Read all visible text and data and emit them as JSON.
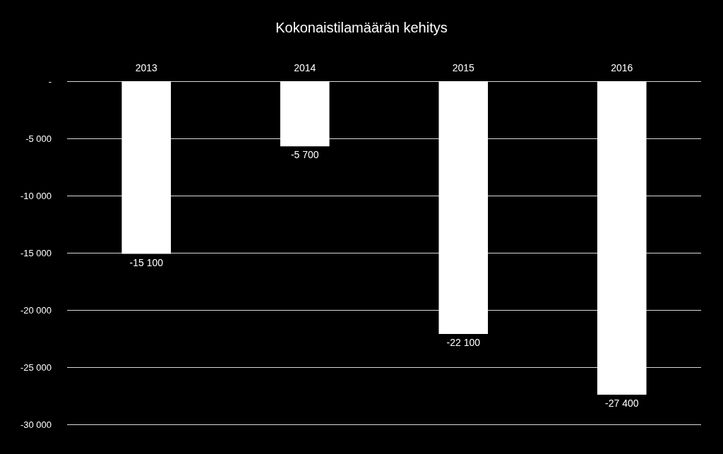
{
  "chart_data": {
    "type": "bar",
    "title": "Kokonaistilamäärän kehitys",
    "categories": [
      "2013",
      "2014",
      "2015",
      "2016"
    ],
    "values": [
      -15100,
      -5700,
      -22100,
      -27400
    ],
    "value_labels": [
      "-15 100",
      "-5 700",
      "-22 100",
      "-27 400"
    ],
    "color": "#ffffff",
    "ylim": [
      -30000,
      0
    ],
    "yticks": [
      {
        "value": 0,
        "label": "-"
      },
      {
        "value": -5000,
        "label": "-5 000"
      },
      {
        "value": -10000,
        "label": "-10 000"
      },
      {
        "value": -15000,
        "label": "-15 000"
      },
      {
        "value": -20000,
        "label": "-20 000"
      },
      {
        "value": -25000,
        "label": "-25 000"
      },
      {
        "value": -30000,
        "label": "-30 000"
      }
    ],
    "grid": "y"
  }
}
